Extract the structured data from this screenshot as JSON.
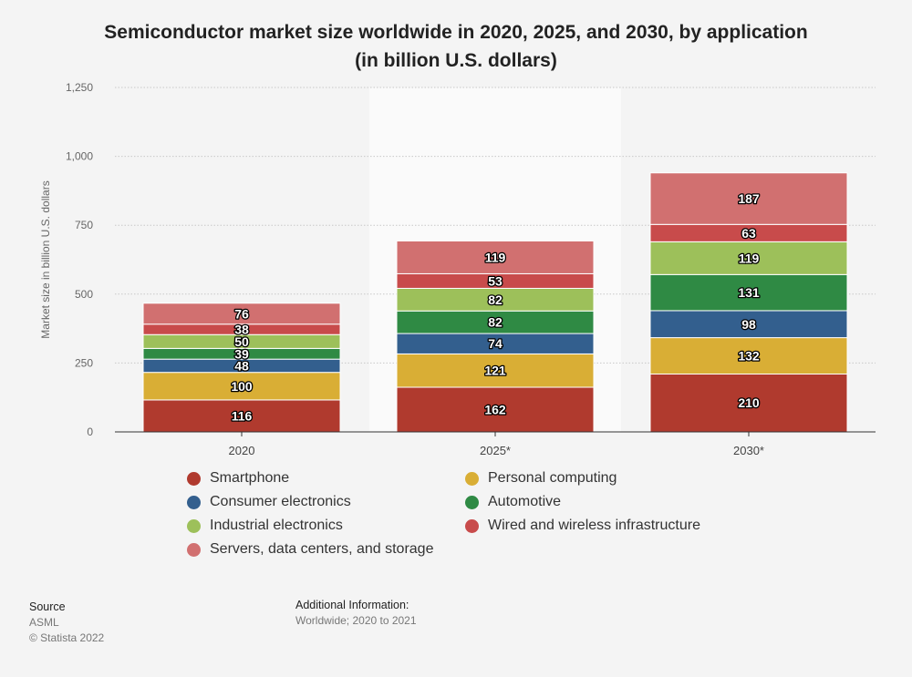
{
  "header": {
    "title_line1": "Semiconductor market size worldwide in 2020, 2025, and 2030, by application",
    "title_line2": "(in billion U.S. dollars)"
  },
  "chart_data": {
    "type": "bar",
    "stacked": true,
    "title": "Semiconductor market size worldwide in 2020, 2025, and 2030, by application (in billion U.S. dollars)",
    "xlabel": "",
    "ylabel": "Market size in billion U.S. dollars",
    "ylim": [
      0,
      1250
    ],
    "yticks": [
      0,
      250,
      500,
      750,
      1000,
      1250
    ],
    "ytick_labels": [
      "0",
      "250",
      "500",
      "750",
      "1,000",
      "1,250"
    ],
    "grid": true,
    "legend_position": "bottom",
    "categories": [
      "2020",
      "2025*",
      "2030*"
    ],
    "series": [
      {
        "name": "Smartphone",
        "color": "#b03a2e",
        "values": [
          116,
          162,
          210
        ]
      },
      {
        "name": "Personal computing",
        "color": "#d9ae35",
        "values": [
          100,
          121,
          132
        ]
      },
      {
        "name": "Consumer electronics",
        "color": "#335f8e",
        "values": [
          48,
          74,
          98
        ]
      },
      {
        "name": "Automotive",
        "color": "#2f8a44",
        "values": [
          39,
          82,
          131
        ]
      },
      {
        "name": "Industrial electronics",
        "color": "#9dc05a",
        "values": [
          50,
          82,
          119
        ]
      },
      {
        "name": "Wired and wireless infrastructure",
        "color": "#c84b4b",
        "values": [
          38,
          53,
          63
        ]
      },
      {
        "name": "Servers, data centers, and storage",
        "color": "#d17070",
        "values": [
          76,
          119,
          187
        ]
      }
    ]
  },
  "footer": {
    "source_label": "Source",
    "source_value": "ASML",
    "copyright": "© Statista 2022",
    "additional_label": "Additional Information:",
    "additional_value": "Worldwide; 2020 to 2021"
  }
}
